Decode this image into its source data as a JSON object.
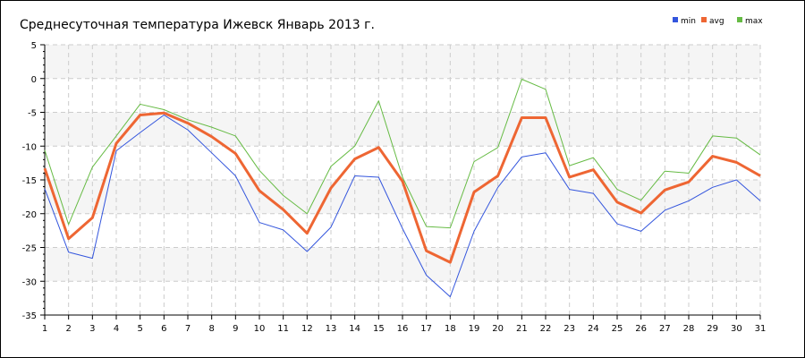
{
  "chart_data": {
    "type": "line",
    "title": "Среднесуточная температура Ижевск  Январь 2013 г.",
    "xlabel": "",
    "ylabel": "",
    "x": [
      1,
      2,
      3,
      4,
      5,
      6,
      7,
      8,
      9,
      10,
      11,
      12,
      13,
      14,
      15,
      16,
      17,
      18,
      19,
      20,
      21,
      22,
      23,
      24,
      25,
      26,
      27,
      28,
      29,
      30,
      31
    ],
    "xlim": [
      1,
      31
    ],
    "ylim": [
      -35,
      5
    ],
    "yticks": [
      5,
      0,
      -5,
      -10,
      -15,
      -20,
      -25,
      -30,
      -35
    ],
    "grid": true,
    "legend_position": "top-right",
    "series": [
      {
        "name": "min",
        "color": "#3355dd",
        "values": [
          -16.3,
          -25.7,
          -26.6,
          -10.7,
          -8.0,
          -5.4,
          -7.6,
          -11.0,
          -14.4,
          -21.3,
          -22.4,
          -25.6,
          -22.0,
          -14.4,
          -14.6,
          -22.2,
          -29.1,
          -32.3,
          -22.6,
          -16.1,
          -11.6,
          -11.0,
          -16.4,
          -17.0,
          -21.5,
          -22.6,
          -19.5,
          -18.1,
          -16.1,
          -15.0,
          -18.1
        ]
      },
      {
        "name": "avg",
        "color": "#ee6633",
        "values": [
          -13.3,
          -23.7,
          -20.6,
          -9.6,
          -5.4,
          -5.1,
          -6.6,
          -8.6,
          -11.1,
          -16.6,
          -19.4,
          -22.9,
          -16.2,
          -11.9,
          -10.2,
          -15.2,
          -25.5,
          -27.2,
          -16.8,
          -14.4,
          -5.8,
          -5.8,
          -14.6,
          -13.5,
          -18.3,
          -19.9,
          -16.5,
          -15.3,
          -11.5,
          -12.4,
          -14.4
        ]
      },
      {
        "name": "max",
        "color": "#66bb44",
        "values": [
          -10.6,
          -21.6,
          -13.1,
          -8.5,
          -3.8,
          -4.6,
          -6.1,
          -7.2,
          -8.5,
          -13.6,
          -17.3,
          -20.0,
          -13.0,
          -10.0,
          -3.3,
          -14.6,
          -21.9,
          -22.1,
          -12.3,
          -10.2,
          -0.1,
          -1.6,
          -12.9,
          -11.7,
          -16.4,
          -18.0,
          -13.7,
          -14.0,
          -8.5,
          -8.8,
          -11.3
        ]
      }
    ]
  }
}
